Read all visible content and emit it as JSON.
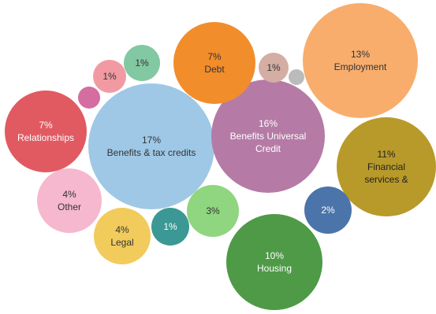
{
  "chart_data": {
    "type": "bubble",
    "title": "",
    "unit": "%",
    "bubbles": [
      {
        "id": "benefits-tax-credits",
        "pct": "17%",
        "label": [
          "Benefits & tax credits"
        ],
        "value": 17,
        "color": "#9fc8e6",
        "text_color": "#333333"
      },
      {
        "id": "benefits-universal-credit",
        "pct": "16%",
        "label": [
          "Benefits Universal",
          "Credit"
        ],
        "value": 16,
        "color": "#b57ba6",
        "text_color": "#ffffff"
      },
      {
        "id": "employment",
        "pct": "13%",
        "label": [
          "Employment"
        ],
        "value": 13,
        "color": "#f8ad6d",
        "text_color": "#333333"
      },
      {
        "id": "financial-services",
        "pct": "11%",
        "label": [
          "Financial",
          "services &"
        ],
        "value": 11,
        "color": "#b89a2a",
        "text_color": "#222222"
      },
      {
        "id": "housing",
        "pct": "10%",
        "label": [
          "Housing"
        ],
        "value": 10,
        "color": "#4e9a47",
        "text_color": "#ffffff"
      },
      {
        "id": "relationships",
        "pct": "7%",
        "label": [
          "Relationships"
        ],
        "value": 7,
        "color": "#e15a62",
        "text_color": "#ffffff"
      },
      {
        "id": "debt",
        "pct": "7%",
        "label": [
          "Debt"
        ],
        "value": 7,
        "color": "#f28d2b",
        "text_color": "#333333"
      },
      {
        "id": "other",
        "pct": "4%",
        "label": [
          "Other"
        ],
        "value": 4,
        "color": "#f6b8cf",
        "text_color": "#333333"
      },
      {
        "id": "legal",
        "pct": "4%",
        "label": [
          "Legal"
        ],
        "value": 4,
        "color": "#f1cb5c",
        "text_color": "#333333"
      },
      {
        "id": "unlabeled-3pct",
        "pct": "3%",
        "label": [],
        "value": 3,
        "color": "#90d57f",
        "text_color": "#333333"
      },
      {
        "id": "unlabeled-2pct",
        "pct": "2%",
        "label": [],
        "value": 2,
        "color": "#4b74aa",
        "text_color": "#ffffff"
      },
      {
        "id": "unlabeled-1pct-teal",
        "pct": "1%",
        "label": [],
        "value": 1,
        "color": "#3b9894",
        "text_color": "#ffffff"
      },
      {
        "id": "unlabeled-1pct-green",
        "pct": "1%",
        "label": [],
        "value": 1,
        "color": "#82c8a2",
        "text_color": "#333333"
      },
      {
        "id": "unlabeled-1pct-pink",
        "pct": "1%",
        "label": [],
        "value": 1,
        "color": "#f29aa3",
        "text_color": "#333333"
      },
      {
        "id": "unlabeled-1pct-taupe",
        "pct": "1%",
        "label": [],
        "value": 1,
        "color": "#d4ada3",
        "text_color": "#333333"
      },
      {
        "id": "unlabeled-small-magenta",
        "pct": "",
        "label": [],
        "color": "#d46da0",
        "text_color": "#333333"
      },
      {
        "id": "unlabeled-small-grey",
        "pct": "",
        "label": [],
        "color": "#bbbbbb",
        "text_color": "#333333"
      }
    ]
  }
}
